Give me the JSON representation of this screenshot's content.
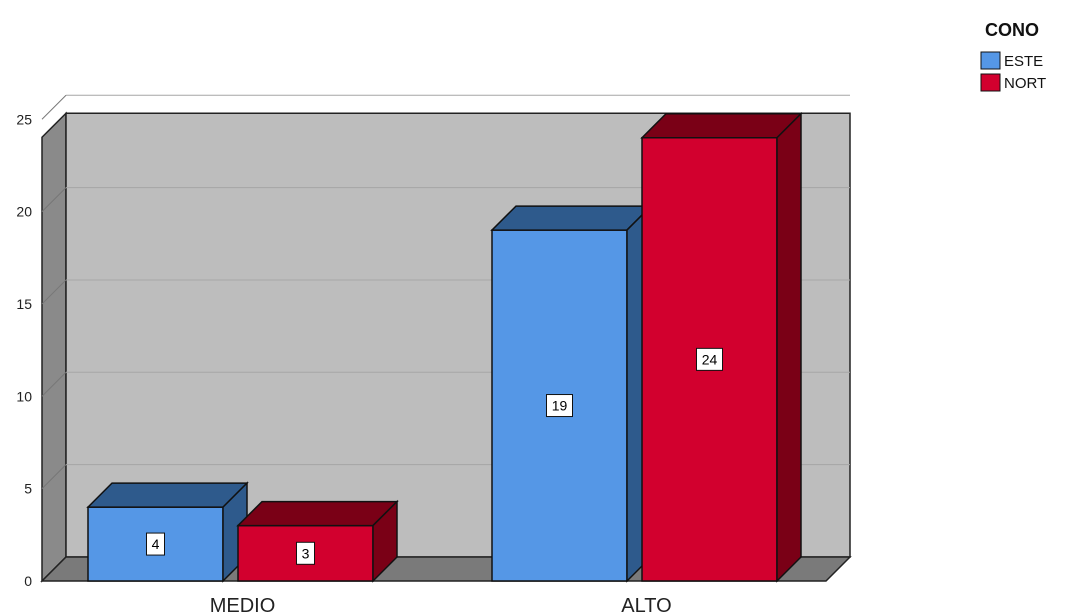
{
  "chart_data": {
    "type": "bar",
    "style": "3d-clustered",
    "categories": [
      "MEDIO",
      "ALTO"
    ],
    "series": [
      {
        "name": "ESTE",
        "values": [
          4,
          19
        ],
        "color": "#5597e6",
        "side_color": "#2e5a8c"
      },
      {
        "name": "NORT",
        "values": [
          3,
          24
        ],
        "color": "#d2002e",
        "side_color": "#7a0016"
      }
    ],
    "ylim": [
      0,
      25
    ],
    "yticks": [
      0,
      5,
      10,
      15,
      20,
      25
    ],
    "legend_title": "CONO",
    "legend_position": "top-right",
    "grid": true,
    "data_labels": true
  }
}
